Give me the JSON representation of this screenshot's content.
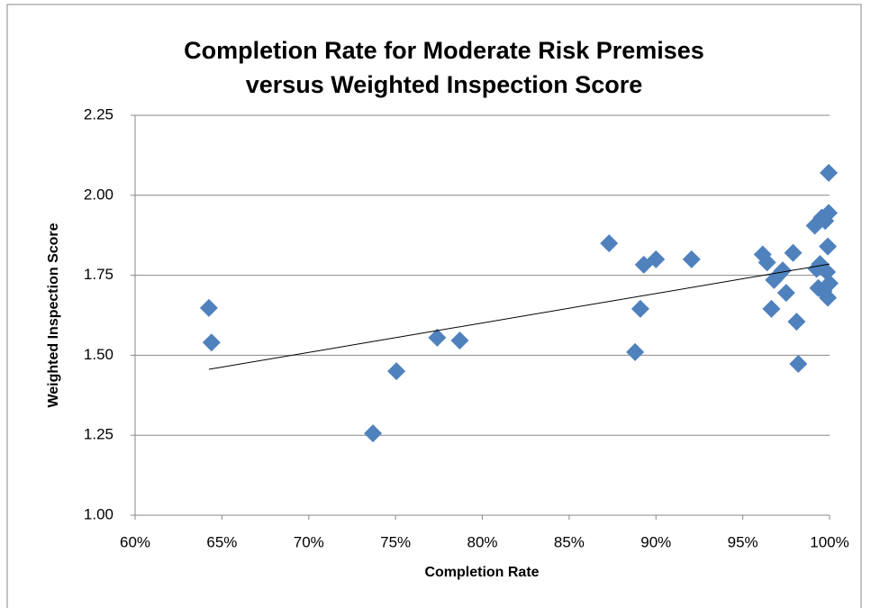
{
  "chart_data": {
    "type": "scatter",
    "title": [
      "Completion Rate for Moderate Risk Premises",
      "versus Weighted Inspection Score"
    ],
    "x_label": "Completion Rate",
    "y_label": "Weighted Inspection Score",
    "color": "#4f81bd",
    "grid": true,
    "xlim": [
      60,
      100
    ],
    "xticks": [
      {
        "value": 60,
        "label": "60%"
      },
      {
        "value": 65,
        "label": "65%"
      },
      {
        "value": 70,
        "label": "70%"
      },
      {
        "value": 75,
        "label": "75%"
      },
      {
        "value": 80,
        "label": "80%"
      },
      {
        "value": 85,
        "label": "85%"
      },
      {
        "value": 90,
        "label": "90%"
      },
      {
        "value": 95,
        "label": "95%"
      },
      {
        "value": 100,
        "label": "100%"
      }
    ],
    "ylim": [
      1,
      2.25
    ],
    "yticks": [
      {
        "value": 1,
        "label": "1.00"
      },
      1.25,
      {
        "value": 1.5,
        "label": "1.50"
      },
      1.75,
      {
        "value": 2,
        "label": "2.00"
      },
      2.25
    ],
    "x": [
      64.25,
      64.4,
      73.7,
      75.05,
      77.4,
      78.7,
      87.3,
      88.8,
      89.1,
      89.3,
      90.0,
      92.05,
      96.15,
      96.4,
      96.65,
      96.8,
      97.05,
      97.3,
      97.5,
      97.9,
      98.1,
      98.2,
      99.15,
      99.25,
      99.35,
      99.45,
      99.55,
      99.65,
      99.75,
      99.85,
      99.9,
      99.9,
      99.95,
      99.95,
      100
    ],
    "values": [
      1.648,
      1.54,
      1.256,
      1.45,
      1.555,
      1.546,
      1.85,
      1.51,
      1.645,
      1.783,
      1.8,
      1.8,
      1.815,
      1.79,
      1.645,
      1.735,
      1.75,
      1.765,
      1.695,
      1.82,
      1.605,
      1.473,
      1.905,
      1.77,
      1.71,
      1.785,
      1.93,
      1.7,
      1.92,
      1.76,
      1.68,
      1.84,
      2.07,
      1.945,
      1.725
    ],
    "trendline": {
      "x": [
        64.25,
        100
      ],
      "y": [
        1.456,
        1.785
      ]
    }
  }
}
